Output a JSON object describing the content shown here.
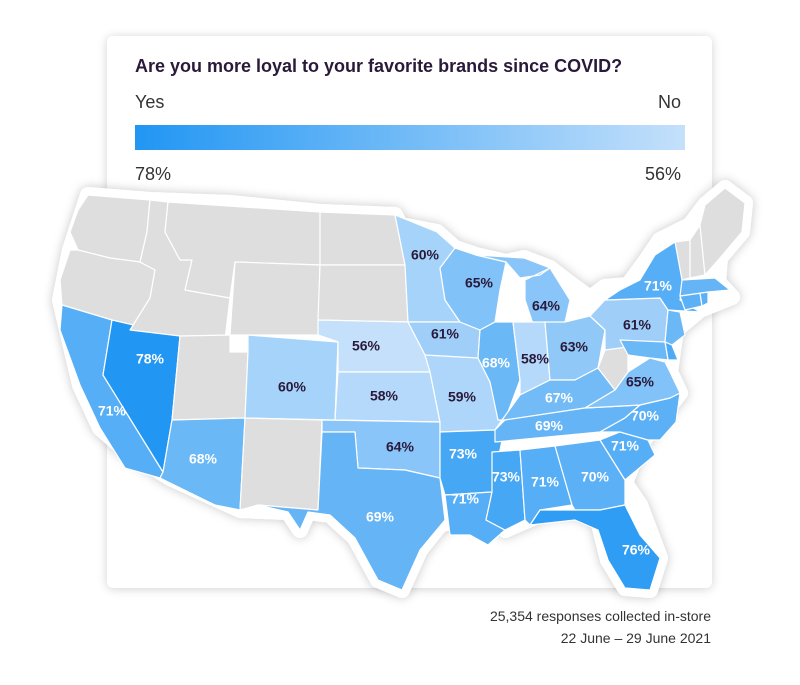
{
  "title": "Are you more loyal to your favorite brands since COVID?",
  "legend": {
    "left_label": "Yes",
    "right_label": "No",
    "min_label": "78%",
    "max_label": "56%",
    "color_high": "#2196f3",
    "color_low": "#c4e0fb"
  },
  "colors": {
    "no_data": "#dedede",
    "border": "#ffffff",
    "text_dark": "#2a1a3a",
    "text_light": "#ffffff"
  },
  "states": [
    {
      "abbr": "WA",
      "value": null
    },
    {
      "abbr": "OR",
      "value": null
    },
    {
      "abbr": "CA",
      "value": 71,
      "label": "71%"
    },
    {
      "abbr": "NV",
      "value": 78,
      "label": "78%"
    },
    {
      "abbr": "ID",
      "value": null
    },
    {
      "abbr": "MT",
      "value": null
    },
    {
      "abbr": "WY",
      "value": null
    },
    {
      "abbr": "UT",
      "value": null
    },
    {
      "abbr": "AZ",
      "value": 68,
      "label": "68%"
    },
    {
      "abbr": "CO",
      "value": 60,
      "label": "60%"
    },
    {
      "abbr": "NM",
      "value": null
    },
    {
      "abbr": "ND",
      "value": null
    },
    {
      "abbr": "SD",
      "value": null
    },
    {
      "abbr": "NE",
      "value": 56,
      "label": "56%"
    },
    {
      "abbr": "KS",
      "value": 58,
      "label": "58%"
    },
    {
      "abbr": "OK",
      "value": 64,
      "label": "64%"
    },
    {
      "abbr": "TX",
      "value": 69,
      "label": "69%"
    },
    {
      "abbr": "MN",
      "value": 60,
      "label": "60%"
    },
    {
      "abbr": "IA",
      "value": 61,
      "label": "61%"
    },
    {
      "abbr": "MO",
      "value": 59,
      "label": "59%"
    },
    {
      "abbr": "AR",
      "value": 73,
      "label": "73%"
    },
    {
      "abbr": "LA",
      "value": 71,
      "label": "71%"
    },
    {
      "abbr": "WI",
      "value": 65,
      "label": "65%"
    },
    {
      "abbr": "IL",
      "value": 68,
      "label": "68%"
    },
    {
      "abbr": "MI",
      "value": 64,
      "label": "64%"
    },
    {
      "abbr": "IN",
      "value": 58,
      "label": "58%"
    },
    {
      "abbr": "OH",
      "value": 63,
      "label": "63%"
    },
    {
      "abbr": "KY",
      "value": 67,
      "label": "67%"
    },
    {
      "abbr": "TN",
      "value": 69,
      "label": "69%"
    },
    {
      "abbr": "MS",
      "value": 73,
      "label": "73%"
    },
    {
      "abbr": "AL",
      "value": 71,
      "label": "71%"
    },
    {
      "abbr": "GA",
      "value": 70,
      "label": "70%"
    },
    {
      "abbr": "FL",
      "value": 76,
      "label": "76%"
    },
    {
      "abbr": "SC",
      "value": 71,
      "label": "71%"
    },
    {
      "abbr": "NC",
      "value": 70,
      "label": "70%"
    },
    {
      "abbr": "VA",
      "value": 65,
      "label": "65%"
    },
    {
      "abbr": "WV",
      "value": null
    },
    {
      "abbr": "PA",
      "value": 61,
      "label": "61%"
    },
    {
      "abbr": "NY",
      "value": 71,
      "label": "71%"
    },
    {
      "abbr": "NJ",
      "value": 68
    },
    {
      "abbr": "DE",
      "value": 72
    },
    {
      "abbr": "MD",
      "value": 68
    },
    {
      "abbr": "CT",
      "value": 70
    },
    {
      "abbr": "RI",
      "value": 70
    },
    {
      "abbr": "MA",
      "value": 69
    },
    {
      "abbr": "VT",
      "value": null
    },
    {
      "abbr": "NH",
      "value": null
    },
    {
      "abbr": "ME",
      "value": null
    }
  ],
  "footnote": {
    "line1": "25,354 responses collected in-store",
    "line2": "22 June – 29 June 2021"
  }
}
